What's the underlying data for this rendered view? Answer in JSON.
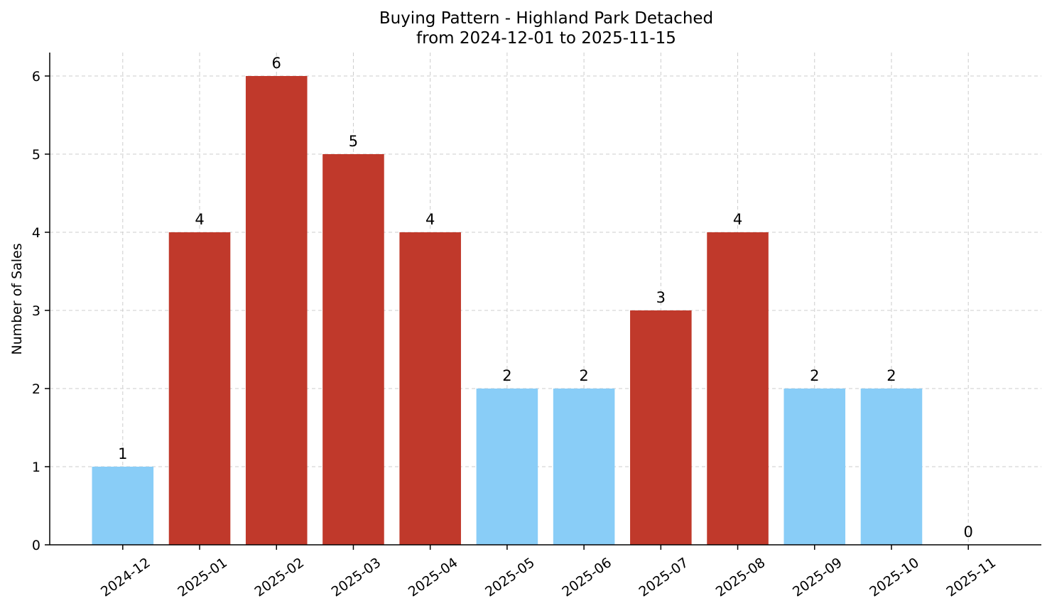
{
  "chart_data": {
    "type": "bar",
    "title": "Buying Pattern - Highland Park Detached",
    "subtitle": "from 2024-12-01 to 2025-11-15",
    "xlabel": "",
    "ylabel": "Number of Sales",
    "categories": [
      "2024-12",
      "2025-01",
      "2025-02",
      "2025-03",
      "2025-04",
      "2025-05",
      "2025-06",
      "2025-07",
      "2025-08",
      "2025-09",
      "2025-10",
      "2025-11"
    ],
    "values": [
      1,
      4,
      6,
      5,
      4,
      2,
      2,
      3,
      4,
      2,
      2,
      0
    ],
    "bar_colors": [
      "#89cdf7",
      "#c0392b",
      "#c0392b",
      "#c0392b",
      "#c0392b",
      "#89cdf7",
      "#89cdf7",
      "#c0392b",
      "#c0392b",
      "#89cdf7",
      "#89cdf7",
      "#89cdf7"
    ],
    "ylim": [
      0,
      6.3
    ],
    "yticks": [
      0,
      1,
      2,
      3,
      4,
      5,
      6
    ],
    "grid": true,
    "data_labels": true
  }
}
